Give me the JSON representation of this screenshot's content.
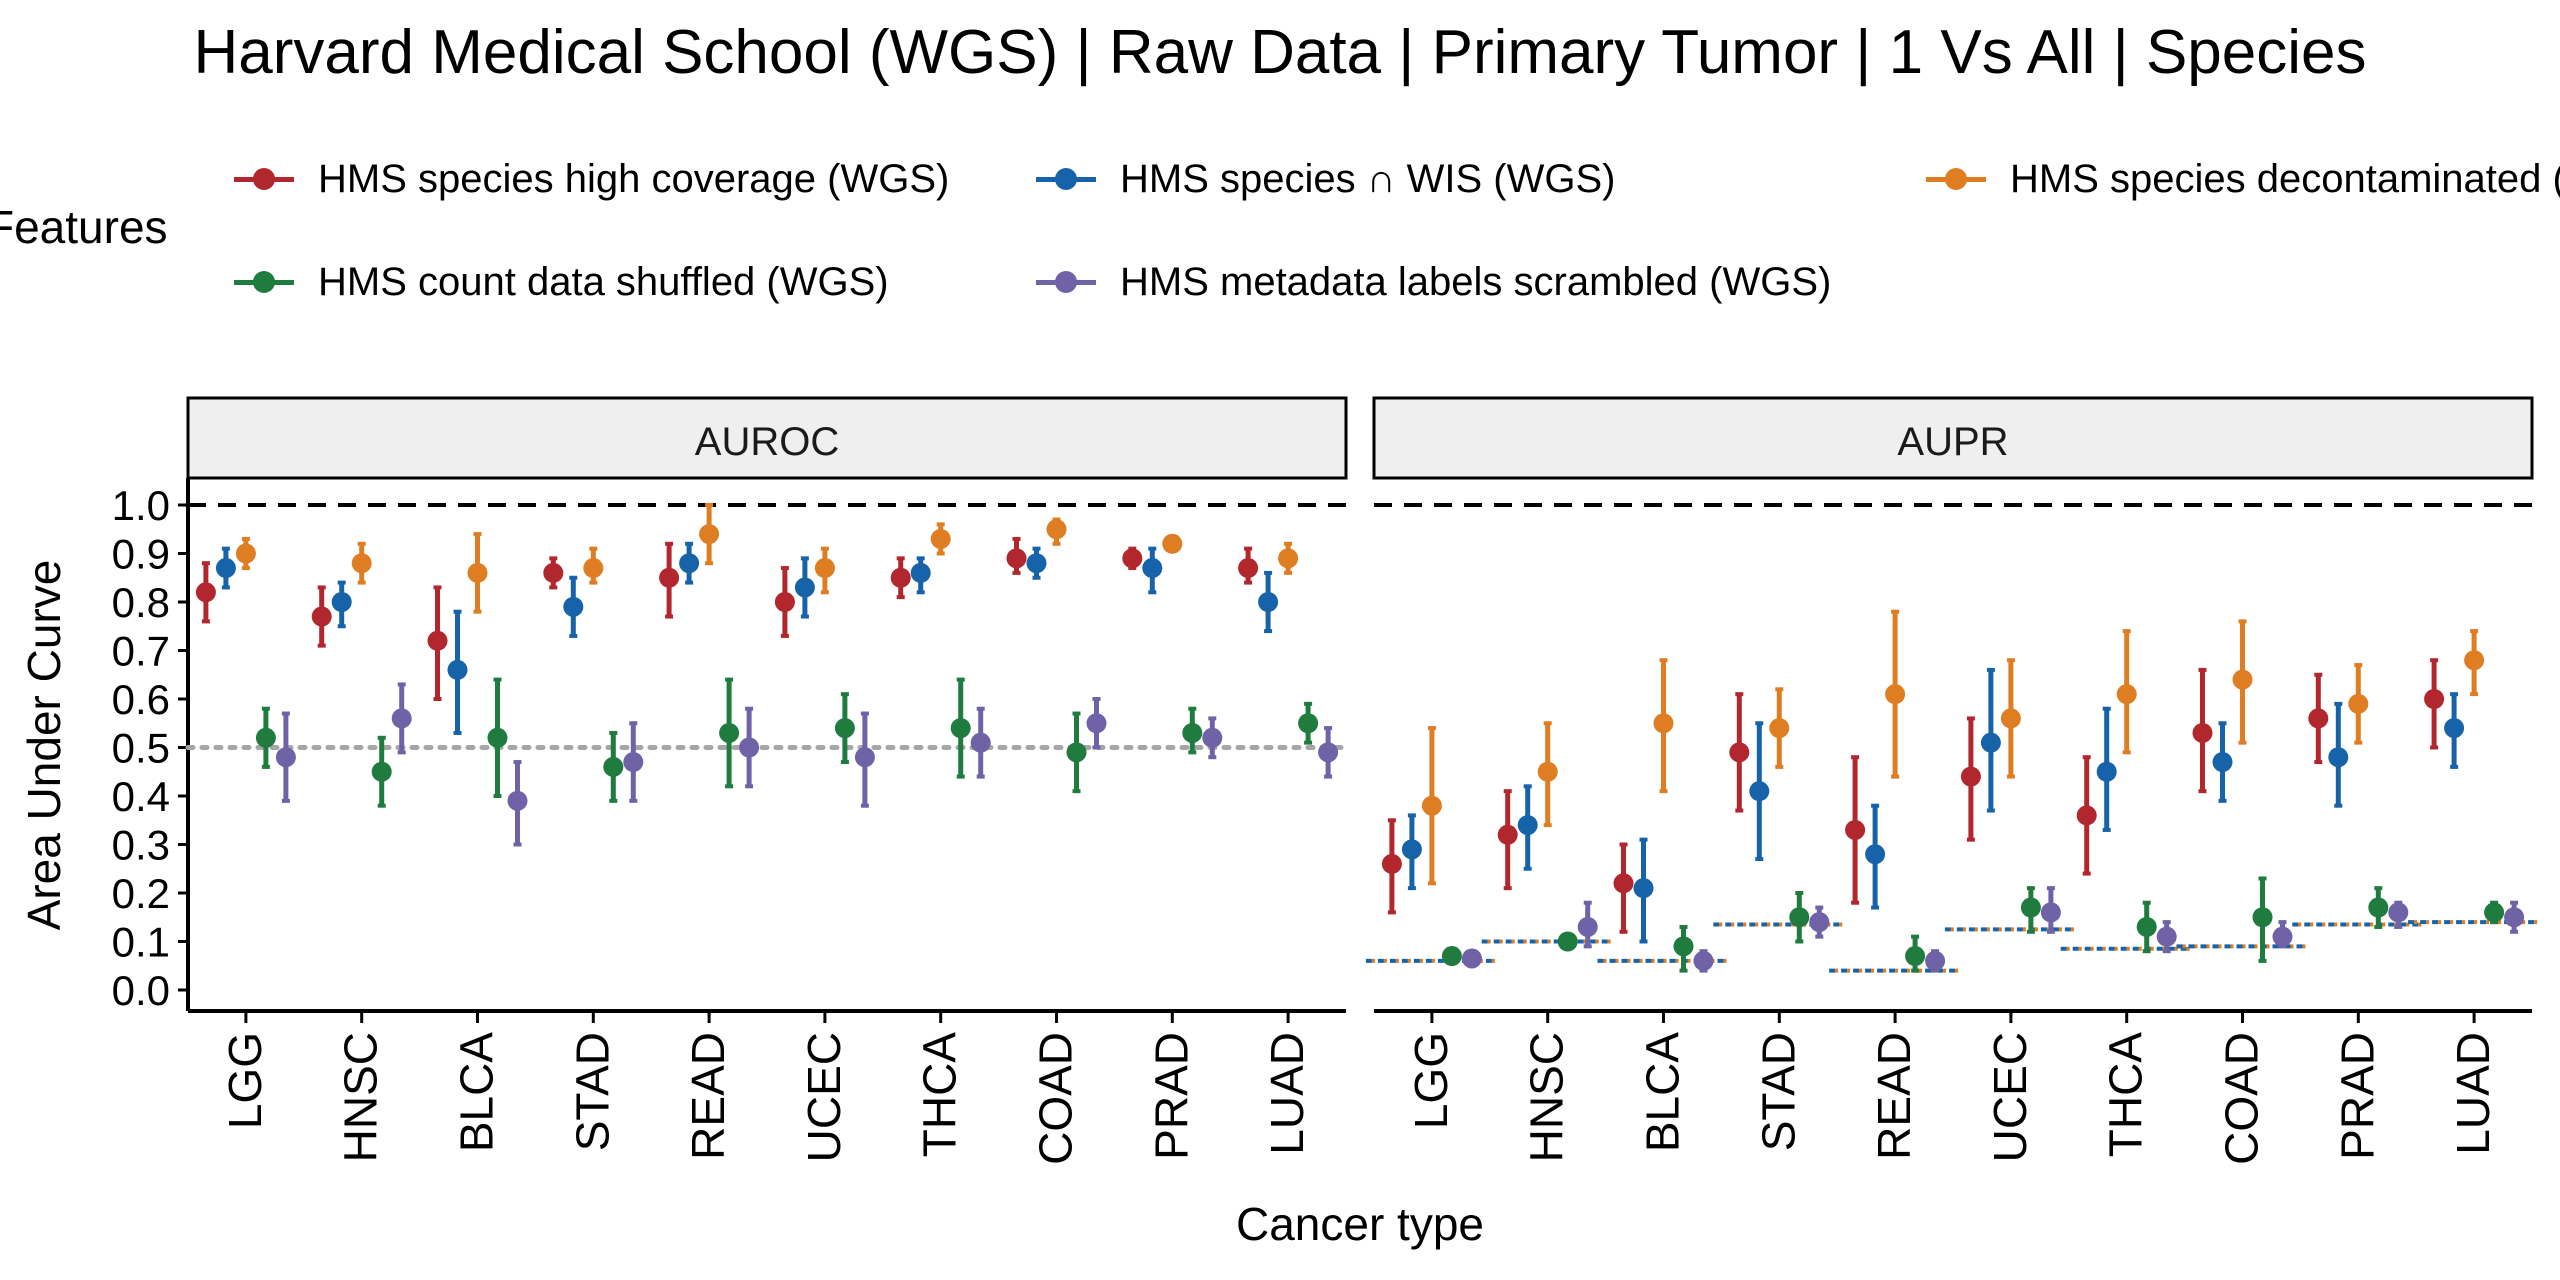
{
  "chart_data": {
    "type": "scatter",
    "title": "Harvard Medical School (WGS) | Raw Data | Primary Tumor | 1 Vs All | Species",
    "xlabel": "Cancer type",
    "ylabel": "Area Under Curve",
    "ylim": [
      0,
      1
    ],
    "yticks": [
      "0.0",
      "0.1",
      "0.2",
      "0.3",
      "0.4",
      "0.5",
      "0.6",
      "0.7",
      "0.8",
      "0.9",
      "1.0"
    ],
    "legend_title": "Features",
    "legend_placement": "top",
    "categories": [
      "LGG",
      "HNSC",
      "BLCA",
      "STAD",
      "READ",
      "UCEC",
      "THCA",
      "COAD",
      "PRAD",
      "LUAD"
    ],
    "series": [
      {
        "name": "HMS species high coverage (WGS)",
        "color": "#B2272D"
      },
      {
        "name": "HMS species ∩ WIS (WGS)",
        "color": "#1763A9"
      },
      {
        "name": "HMS species decontaminated (WGS)",
        "color": "#DF7D23"
      },
      {
        "name": "HMS count data shuffled (WGS)",
        "color": "#1F7B3E"
      },
      {
        "name": "HMS metadata labels scrambled (WGS)",
        "color": "#6F62A6"
      }
    ],
    "panels": [
      {
        "label": "AUROC",
        "reference_line": 0.5,
        "values": {
          "LGG": [
            [
              0.82,
              0.76,
              0.88
            ],
            [
              0.87,
              0.83,
              0.91
            ],
            [
              0.9,
              0.87,
              0.93
            ],
            [
              0.52,
              0.46,
              0.58
            ],
            [
              0.48,
              0.39,
              0.57
            ]
          ],
          "HNSC": [
            [
              0.77,
              0.71,
              0.83
            ],
            [
              0.8,
              0.75,
              0.84
            ],
            [
              0.88,
              0.84,
              0.92
            ],
            [
              0.45,
              0.38,
              0.52
            ],
            [
              0.56,
              0.49,
              0.63
            ]
          ],
          "BLCA": [
            [
              0.72,
              0.6,
              0.83
            ],
            [
              0.66,
              0.53,
              0.78
            ],
            [
              0.86,
              0.78,
              0.94
            ],
            [
              0.52,
              0.4,
              0.64
            ],
            [
              0.39,
              0.3,
              0.47
            ]
          ],
          "STAD": [
            [
              0.86,
              0.83,
              0.89
            ],
            [
              0.79,
              0.73,
              0.85
            ],
            [
              0.87,
              0.84,
              0.91
            ],
            [
              0.46,
              0.39,
              0.53
            ],
            [
              0.47,
              0.39,
              0.55
            ]
          ],
          "READ": [
            [
              0.85,
              0.77,
              0.92
            ],
            [
              0.88,
              0.84,
              0.92
            ],
            [
              0.94,
              0.88,
              1.0
            ],
            [
              0.53,
              0.42,
              0.64
            ],
            [
              0.5,
              0.42,
              0.58
            ]
          ],
          "UCEC": [
            [
              0.8,
              0.73,
              0.87
            ],
            [
              0.83,
              0.77,
              0.89
            ],
            [
              0.87,
              0.82,
              0.91
            ],
            [
              0.54,
              0.47,
              0.61
            ],
            [
              0.48,
              0.38,
              0.57
            ]
          ],
          "THCA": [
            [
              0.85,
              0.81,
              0.89
            ],
            [
              0.86,
              0.82,
              0.89
            ],
            [
              0.93,
              0.9,
              0.96
            ],
            [
              0.54,
              0.44,
              0.64
            ],
            [
              0.51,
              0.44,
              0.58
            ]
          ],
          "COAD": [
            [
              0.89,
              0.86,
              0.93
            ],
            [
              0.88,
              0.85,
              0.91
            ],
            [
              0.95,
              0.92,
              0.97
            ],
            [
              0.49,
              0.41,
              0.57
            ],
            [
              0.55,
              0.5,
              0.6
            ]
          ],
          "PRAD": [
            [
              0.89,
              0.87,
              0.91
            ],
            [
              0.87,
              0.82,
              0.91
            ],
            [
              0.92,
              0.91,
              0.93
            ],
            [
              0.53,
              0.49,
              0.58
            ],
            [
              0.52,
              0.48,
              0.56
            ]
          ],
          "LUAD": [
            [
              0.87,
              0.84,
              0.91
            ],
            [
              0.8,
              0.74,
              0.86
            ],
            [
              0.89,
              0.86,
              0.92
            ],
            [
              0.55,
              0.51,
              0.59
            ],
            [
              0.49,
              0.44,
              0.54
            ]
          ]
        }
      },
      {
        "label": "AUPR",
        "baseline": {
          "LGG": 0.06,
          "HNSC": 0.1,
          "BLCA": 0.06,
          "STAD": 0.135,
          "READ": 0.04,
          "UCEC": 0.125,
          "THCA": 0.085,
          "COAD": 0.09,
          "PRAD": 0.135,
          "LUAD": 0.14
        },
        "values": {
          "LGG": [
            [
              0.26,
              0.16,
              0.35
            ],
            [
              0.29,
              0.21,
              0.36
            ],
            [
              0.38,
              0.22,
              0.54
            ],
            [
              0.07,
              0.06,
              0.08
            ],
            [
              0.065,
              0.06,
              0.07
            ]
          ],
          "HNSC": [
            [
              0.32,
              0.21,
              0.41
            ],
            [
              0.34,
              0.25,
              0.42
            ],
            [
              0.45,
              0.34,
              0.55
            ],
            [
              0.1,
              0.09,
              0.11
            ],
            [
              0.13,
              0.09,
              0.18
            ]
          ],
          "BLCA": [
            [
              0.22,
              0.12,
              0.3
            ],
            [
              0.21,
              0.1,
              0.31
            ],
            [
              0.55,
              0.41,
              0.68
            ],
            [
              0.09,
              0.04,
              0.13
            ],
            [
              0.06,
              0.04,
              0.08
            ]
          ],
          "STAD": [
            [
              0.49,
              0.37,
              0.61
            ],
            [
              0.41,
              0.27,
              0.55
            ],
            [
              0.54,
              0.46,
              0.62
            ],
            [
              0.15,
              0.1,
              0.2
            ],
            [
              0.14,
              0.11,
              0.17
            ]
          ],
          "READ": [
            [
              0.33,
              0.18,
              0.48
            ],
            [
              0.28,
              0.17,
              0.38
            ],
            [
              0.61,
              0.44,
              0.78
            ],
            [
              0.07,
              0.04,
              0.11
            ],
            [
              0.06,
              0.04,
              0.08
            ]
          ],
          "UCEC": [
            [
              0.44,
              0.31,
              0.56
            ],
            [
              0.51,
              0.37,
              0.66
            ],
            [
              0.56,
              0.44,
              0.68
            ],
            [
              0.17,
              0.12,
              0.21
            ],
            [
              0.16,
              0.12,
              0.21
            ]
          ],
          "THCA": [
            [
              0.36,
              0.24,
              0.48
            ],
            [
              0.45,
              0.33,
              0.58
            ],
            [
              0.61,
              0.49,
              0.74
            ],
            [
              0.13,
              0.08,
              0.18
            ],
            [
              0.11,
              0.08,
              0.14
            ]
          ],
          "COAD": [
            [
              0.53,
              0.41,
              0.66
            ],
            [
              0.47,
              0.39,
              0.55
            ],
            [
              0.64,
              0.51,
              0.76
            ],
            [
              0.15,
              0.06,
              0.23
            ],
            [
              0.11,
              0.09,
              0.14
            ]
          ],
          "PRAD": [
            [
              0.56,
              0.47,
              0.65
            ],
            [
              0.48,
              0.38,
              0.59
            ],
            [
              0.59,
              0.51,
              0.67
            ],
            [
              0.17,
              0.13,
              0.21
            ],
            [
              0.16,
              0.13,
              0.18
            ]
          ],
          "LUAD": [
            [
              0.6,
              0.5,
              0.68
            ],
            [
              0.54,
              0.46,
              0.61
            ],
            [
              0.68,
              0.61,
              0.74
            ],
            [
              0.16,
              0.14,
              0.18
            ],
            [
              0.15,
              0.12,
              0.18
            ]
          ]
        }
      }
    ]
  }
}
